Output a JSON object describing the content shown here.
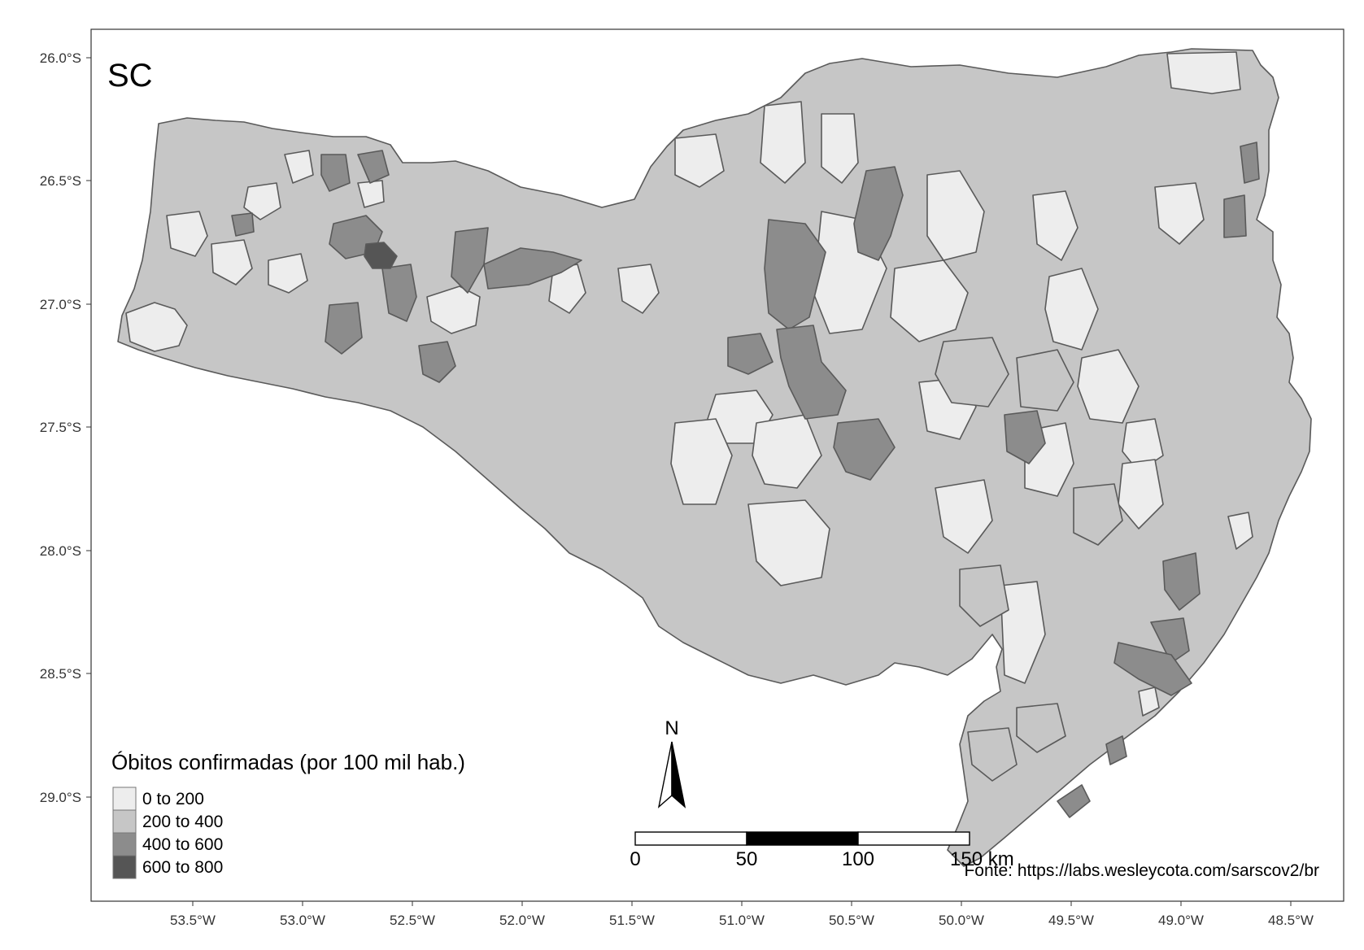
{
  "map": {
    "state_label": "SC",
    "x_ticks": [
      "53.5°W",
      "53.0°W",
      "52.5°W",
      "52.0°W",
      "51.5°W",
      "51.0°W",
      "50.5°W",
      "50.0°W",
      "49.5°W",
      "49.0°W",
      "48.5°W"
    ],
    "y_ticks": [
      "26.0°S",
      "26.5°S",
      "27.0°S",
      "27.5°S",
      "28.0°S",
      "28.5°S",
      "29.0°S"
    ],
    "legend": {
      "title": "Óbitos confirmadas (por 100 mil hab.)",
      "items": [
        {
          "label": "0 to 200",
          "color": "#ededed"
        },
        {
          "label": "200 to 400",
          "color": "#c6c6c6"
        },
        {
          "label": "400 to 600",
          "color": "#8c8c8c"
        },
        {
          "label": "600 to 800",
          "color": "#555555"
        }
      ]
    },
    "north_arrow": {
      "label": "N"
    },
    "scale_bar": {
      "labels": [
        "0",
        "50",
        "100",
        "150 km"
      ]
    },
    "source": "Fonte: https://labs.wesleycota.com/sarscov2/br"
  }
}
